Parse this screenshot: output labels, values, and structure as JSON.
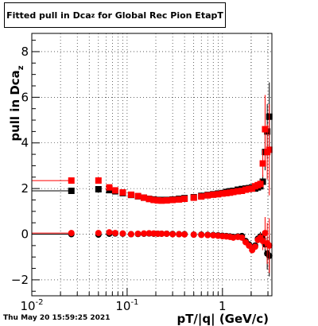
{
  "canvas": {
    "title_main": "Fitted pull in Dca",
    "title_sub": "z",
    "title_rest": " for Global Rec Pion EtapT",
    "timestamp": "Thu May 20 15:59:25 2021"
  },
  "chart_data": {
    "type": "scatter",
    "title": "Fitted pull in Dca_z for Global Rec Pion EtapT",
    "xlabel": "pT/|q| (GeV/c)",
    "ylabel_main": "pull in Dca",
    "ylabel_sub": "z",
    "xscale": "log",
    "xlim": [
      0.01,
      3.3
    ],
    "ylim": [
      -2.7,
      8.8
    ],
    "grid": true,
    "x_ticks": [
      {
        "value": 0.01,
        "label": "10",
        "exp": "-2"
      },
      {
        "value": 0.1,
        "label": "10",
        "exp": "-1"
      },
      {
        "value": 1,
        "label": "1",
        "exp": ""
      }
    ],
    "y_ticks": [
      {
        "value": -2,
        "label": "−2"
      },
      {
        "value": 0,
        "label": "0"
      },
      {
        "value": 2,
        "label": "2"
      },
      {
        "value": 4,
        "label": "4"
      },
      {
        "value": 6,
        "label": "6"
      },
      {
        "value": 8,
        "label": "8"
      }
    ],
    "series": [
      {
        "marker": "square",
        "color": "#000000",
        "x": [
          0.026,
          0.05,
          0.065,
          0.075,
          0.09,
          0.11,
          0.13,
          0.15,
          0.17,
          0.19,
          0.21,
          0.23,
          0.26,
          0.3,
          0.35,
          0.4,
          0.5,
          0.6,
          0.7,
          0.8,
          0.9,
          1.0,
          1.1,
          1.2,
          1.3,
          1.45,
          1.6,
          1.75,
          1.9,
          2.05,
          2.2,
          2.35,
          2.5,
          2.65,
          2.8,
          2.95,
          3.1
        ],
        "y": [
          1.9,
          1.97,
          1.93,
          1.88,
          1.8,
          1.72,
          1.66,
          1.6,
          1.55,
          1.52,
          1.5,
          1.5,
          1.5,
          1.52,
          1.55,
          1.58,
          1.62,
          1.68,
          1.72,
          1.75,
          1.78,
          1.8,
          1.85,
          1.88,
          1.9,
          1.95,
          1.98,
          2.0,
          2.02,
          2.05,
          2.0,
          2.05,
          2.1,
          2.3,
          3.6,
          4.5,
          5.15
        ],
        "err": [
          0.05,
          0.04,
          0.04,
          0.03,
          0.03,
          0.03,
          0.02,
          0.02,
          0.02,
          0.02,
          0.02,
          0.02,
          0.02,
          0.02,
          0.02,
          0.02,
          0.02,
          0.02,
          0.02,
          0.02,
          0.03,
          0.03,
          0.03,
          0.04,
          0.04,
          0.05,
          0.05,
          0.06,
          0.06,
          0.07,
          0.08,
          0.1,
          0.12,
          0.3,
          0.8,
          1.2,
          1.5
        ]
      },
      {
        "marker": "circle",
        "color": "#000000",
        "x": [
          0.026,
          0.05,
          0.065,
          0.075,
          0.09,
          0.11,
          0.13,
          0.15,
          0.17,
          0.19,
          0.21,
          0.23,
          0.26,
          0.3,
          0.35,
          0.4,
          0.5,
          0.6,
          0.7,
          0.8,
          0.9,
          1.0,
          1.1,
          1.2,
          1.3,
          1.45,
          1.6,
          1.75,
          1.9,
          2.05,
          2.2,
          2.35,
          2.5,
          2.65,
          2.8,
          2.95,
          3.1
        ],
        "y": [
          0.0,
          -0.02,
          0.02,
          0.03,
          0.02,
          0.0,
          0.01,
          0.02,
          0.03,
          0.02,
          0.02,
          0.02,
          0.02,
          0.01,
          0.0,
          0.0,
          -0.02,
          -0.02,
          -0.03,
          -0.04,
          -0.05,
          -0.07,
          -0.08,
          -0.1,
          -0.12,
          -0.1,
          -0.08,
          -0.3,
          -0.45,
          -0.6,
          -0.5,
          -0.2,
          -0.1,
          -0.2,
          -0.45,
          -0.85,
          -0.95
        ],
        "err": [
          0.03,
          0.02,
          0.02,
          0.02,
          0.02,
          0.02,
          0.01,
          0.01,
          0.01,
          0.01,
          0.01,
          0.01,
          0.01,
          0.01,
          0.01,
          0.01,
          0.01,
          0.01,
          0.01,
          0.02,
          0.02,
          0.02,
          0.02,
          0.03,
          0.03,
          0.04,
          0.05,
          0.06,
          0.07,
          0.08,
          0.1,
          0.15,
          0.2,
          0.3,
          0.5,
          0.7,
          0.9
        ]
      },
      {
        "marker": "square",
        "color": "#ff0000",
        "x": [
          0.026,
          0.05,
          0.065,
          0.075,
          0.09,
          0.11,
          0.13,
          0.15,
          0.17,
          0.19,
          0.21,
          0.23,
          0.26,
          0.3,
          0.35,
          0.4,
          0.5,
          0.6,
          0.7,
          0.8,
          0.9,
          1.0,
          1.1,
          1.2,
          1.3,
          1.45,
          1.6,
          1.75,
          1.9,
          2.05,
          2.2,
          2.35,
          2.5,
          2.65,
          2.8,
          2.95,
          3.1
        ],
        "y": [
          2.35,
          2.35,
          2.05,
          1.92,
          1.83,
          1.73,
          1.67,
          1.6,
          1.54,
          1.5,
          1.48,
          1.47,
          1.48,
          1.5,
          1.52,
          1.55,
          1.6,
          1.65,
          1.7,
          1.73,
          1.75,
          1.78,
          1.8,
          1.82,
          1.85,
          1.88,
          1.9,
          1.95,
          1.98,
          2.0,
          2.1,
          2.15,
          2.2,
          3.1,
          4.6,
          3.6,
          3.7
        ],
        "err": [
          0.07,
          0.06,
          0.05,
          0.04,
          0.04,
          0.03,
          0.03,
          0.02,
          0.02,
          0.02,
          0.02,
          0.02,
          0.02,
          0.02,
          0.02,
          0.02,
          0.02,
          0.02,
          0.02,
          0.02,
          0.03,
          0.03,
          0.03,
          0.04,
          0.04,
          0.05,
          0.05,
          0.06,
          0.07,
          0.08,
          0.1,
          0.12,
          0.2,
          0.6,
          1.5,
          1.2,
          2.0
        ]
      },
      {
        "marker": "circle",
        "color": "#ff0000",
        "x": [
          0.026,
          0.05,
          0.065,
          0.075,
          0.09,
          0.11,
          0.13,
          0.15,
          0.17,
          0.19,
          0.21,
          0.23,
          0.26,
          0.3,
          0.35,
          0.4,
          0.5,
          0.6,
          0.7,
          0.8,
          0.9,
          1.0,
          1.1,
          1.2,
          1.3,
          1.45,
          1.6,
          1.75,
          1.9,
          2.05,
          2.2,
          2.35,
          2.5,
          2.65,
          2.8,
          2.95,
          3.1
        ],
        "y": [
          0.05,
          0.05,
          0.08,
          0.05,
          0.03,
          0.0,
          0.02,
          0.03,
          0.04,
          0.03,
          0.02,
          0.02,
          0.02,
          0.0,
          0.0,
          -0.01,
          -0.02,
          -0.03,
          -0.04,
          -0.05,
          -0.07,
          -0.09,
          -0.1,
          -0.12,
          -0.15,
          -0.12,
          -0.15,
          -0.35,
          -0.5,
          -0.7,
          -0.55,
          -0.25,
          -0.15,
          -0.3,
          0.05,
          -0.4,
          -0.5
        ],
        "err": [
          0.04,
          0.03,
          0.03,
          0.02,
          0.02,
          0.02,
          0.02,
          0.01,
          0.01,
          0.01,
          0.01,
          0.01,
          0.01,
          0.01,
          0.01,
          0.01,
          0.01,
          0.01,
          0.02,
          0.02,
          0.02,
          0.02,
          0.03,
          0.03,
          0.04,
          0.04,
          0.05,
          0.06,
          0.08,
          0.1,
          0.12,
          0.15,
          0.2,
          0.4,
          0.7,
          0.9,
          1.2
        ]
      }
    ]
  }
}
